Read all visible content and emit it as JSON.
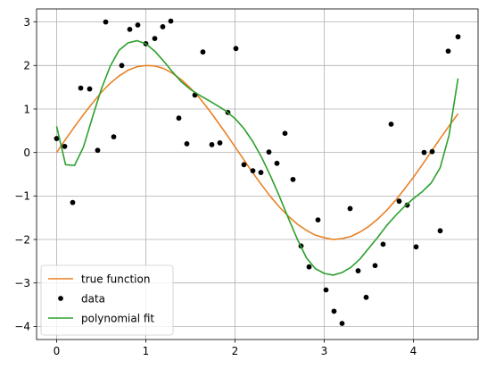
{
  "chart_data": {
    "type": "line",
    "title": "",
    "xlabel": "",
    "ylabel": "",
    "xlim": [
      -0.225,
      4.725
    ],
    "ylim": [
      -4.3,
      3.3
    ],
    "grid": true,
    "legend_position": "lower-left",
    "x_ticks": [
      0,
      1,
      2,
      3,
      4
    ],
    "y_ticks": [
      -4,
      -3,
      -2,
      -1,
      0,
      1,
      2,
      3
    ],
    "series": [
      {
        "name": "true function",
        "kind": "line",
        "color": "#e98125",
        "x": [
          0,
          0.1,
          0.2,
          0.3,
          0.4,
          0.5,
          0.6,
          0.7,
          0.8,
          0.9,
          1.0,
          1.1,
          1.2,
          1.3,
          1.4,
          1.5,
          1.6,
          1.7,
          1.8,
          1.9,
          2.0,
          2.1,
          2.2,
          2.3,
          2.4,
          2.5,
          2.6,
          2.7,
          2.8,
          2.9,
          3.0,
          3.1,
          3.2,
          3.3,
          3.4,
          3.5,
          3.6,
          3.7,
          3.8,
          3.9,
          4.0,
          4.1,
          4.2,
          4.3,
          4.4,
          4.5
        ],
        "values": [
          0.0,
          0.3,
          0.59,
          0.87,
          1.13,
          1.38,
          1.59,
          1.76,
          1.89,
          1.97,
          2.0,
          1.99,
          1.93,
          1.82,
          1.67,
          1.48,
          1.26,
          1.0,
          0.72,
          0.43,
          0.13,
          -0.17,
          -0.47,
          -0.75,
          -1.02,
          -1.26,
          -1.47,
          -1.65,
          -1.79,
          -1.9,
          -1.96,
          -2.0,
          -1.98,
          -1.93,
          -1.83,
          -1.7,
          -1.53,
          -1.33,
          -1.1,
          -0.84,
          -0.57,
          -0.28,
          0.02,
          0.32,
          0.61,
          0.89
        ]
      },
      {
        "name": "data",
        "kind": "scatter",
        "color": "#000000",
        "x": [
          0.0,
          0.09,
          0.18,
          0.27,
          0.37,
          0.46,
          0.55,
          0.64,
          0.73,
          0.82,
          0.91,
          1.0,
          1.1,
          1.19,
          1.28,
          1.37,
          1.46,
          1.55,
          1.64,
          1.74,
          1.83,
          1.92,
          2.01,
          2.1,
          2.2,
          2.29,
          2.38,
          2.47,
          2.56,
          2.65,
          2.74,
          2.83,
          2.93,
          3.02,
          3.11,
          3.2,
          3.29,
          3.38,
          3.47,
          3.57,
          3.66,
          3.75,
          3.84,
          3.93,
          4.03,
          4.12,
          4.21,
          4.3,
          4.39,
          4.5
        ],
        "values": [
          0.32,
          0.14,
          -1.15,
          1.48,
          1.46,
          0.05,
          3.0,
          0.36,
          2.0,
          2.83,
          2.93,
          2.5,
          2.62,
          2.89,
          3.02,
          0.79,
          0.2,
          1.32,
          2.31,
          0.18,
          0.22,
          0.92,
          2.39,
          -0.28,
          -0.42,
          -0.46,
          0.01,
          -0.25,
          0.44,
          -0.62,
          -2.15,
          -2.63,
          -1.55,
          -3.16,
          -3.65,
          -3.93,
          -1.29,
          -2.72,
          -3.33,
          -2.6,
          -2.11,
          0.65,
          -1.12,
          -1.21,
          -2.17,
          0.0,
          0.02,
          -1.8,
          2.33,
          2.66
        ]
      },
      {
        "name": "polynomial fit",
        "kind": "line",
        "color": "#2ca02c",
        "x": [
          0,
          0.1,
          0.2,
          0.3,
          0.4,
          0.5,
          0.6,
          0.7,
          0.8,
          0.9,
          1.0,
          1.1,
          1.2,
          1.3,
          1.4,
          1.5,
          1.6,
          1.7,
          1.8,
          1.9,
          2.0,
          2.1,
          2.2,
          2.3,
          2.4,
          2.5,
          2.6,
          2.7,
          2.8,
          2.9,
          3.0,
          3.1,
          3.2,
          3.3,
          3.4,
          3.5,
          3.6,
          3.7,
          3.8,
          3.9,
          4.0,
          4.1,
          4.2,
          4.3,
          4.4,
          4.5
        ],
        "values": [
          0.6,
          -0.28,
          -0.3,
          0.12,
          0.8,
          1.45,
          1.98,
          2.35,
          2.52,
          2.57,
          2.5,
          2.33,
          2.1,
          1.85,
          1.62,
          1.45,
          1.32,
          1.2,
          1.08,
          0.95,
          0.78,
          0.55,
          0.25,
          -0.12,
          -0.55,
          -1.02,
          -1.52,
          -2.0,
          -2.42,
          -2.67,
          -2.78,
          -2.82,
          -2.76,
          -2.64,
          -2.45,
          -2.2,
          -1.95,
          -1.68,
          -1.45,
          -1.24,
          -1.06,
          -0.9,
          -0.7,
          -0.35,
          0.4,
          1.7
        ]
      }
    ]
  },
  "colors": {
    "grid": "#b0b0b0",
    "axes": "#000000",
    "legend_frame": "#cccccc"
  }
}
